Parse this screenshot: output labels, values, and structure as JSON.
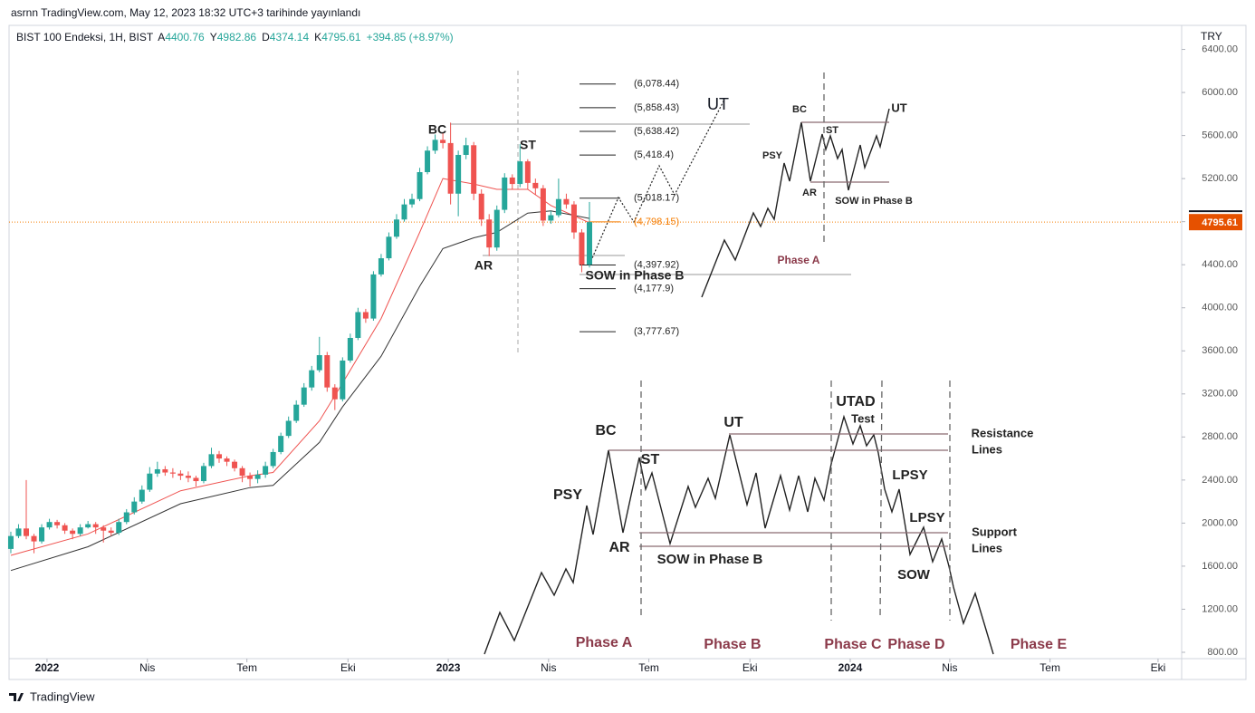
{
  "header": {
    "publisher": "asrnn TradingView.com, May 12, 2023 18:32 UTC+3 tarihinde yayınlandı"
  },
  "footer": {
    "brand": "TradingView"
  },
  "chart_data": {
    "type": "candlestick",
    "symbol": "BIST 100 Endeksi, 1H, BIST",
    "ohlc_letters": [
      "A",
      "Y",
      "D",
      "K"
    ],
    "change": "+394.85 (+8.97%)",
    "currency": "TRY",
    "up_color": "#26a69a",
    "down_color": "#ef5350",
    "x": [
      0,
      1,
      2,
      3,
      4,
      5,
      6,
      7,
      8,
      9,
      10,
      11,
      12,
      13,
      14,
      15,
      16,
      17,
      18,
      19,
      20,
      21,
      22,
      23,
      24,
      25,
      26,
      27,
      28,
      29,
      30,
      31,
      32,
      33,
      34,
      35,
      36,
      37,
      38,
      39,
      40,
      41,
      42,
      43,
      44,
      45,
      46,
      47,
      48,
      49,
      50,
      51,
      52,
      53,
      54,
      55,
      56,
      57,
      58,
      59,
      60,
      61,
      62,
      63,
      64,
      65,
      66,
      67,
      68,
      69,
      70,
      71,
      72,
      73,
      74,
      75
    ],
    "open": [
      1760,
      1880,
      1950,
      1880,
      1830,
      1960,
      2010,
      1980,
      1930,
      1900,
      1960,
      1990,
      1960,
      1930,
      1910,
      2010,
      2100,
      2200,
      2310,
      2460,
      2500,
      2470,
      2460,
      2440,
      2420,
      2390,
      2530,
      2640,
      2600,
      2570,
      2510,
      2440,
      2410,
      2450,
      2530,
      2660,
      2810,
      2950,
      3100,
      3260,
      3420,
      3560,
      3260,
      3150,
      3510,
      3720,
      3960,
      3900,
      4310,
      4460,
      4660,
      4820,
      4960,
      5010,
      5260,
      5460,
      5560,
      5530,
      5060,
      5420,
      5510,
      5060,
      4820,
      4560,
      4910,
      5210,
      5150,
      5360,
      5160,
      5110,
      4810,
      4860,
      5010,
      4960,
      4700,
      4400.76
    ],
    "high": [
      1920,
      1990,
      2400,
      1900,
      1990,
      2040,
      2030,
      2000,
      1950,
      1990,
      2020,
      2010,
      1980,
      1960,
      2040,
      2130,
      2240,
      2350,
      2520,
      2570,
      2530,
      2510,
      2490,
      2480,
      2440,
      2560,
      2700,
      2670,
      2620,
      2590,
      2530,
      2470,
      2490,
      2570,
      2690,
      2840,
      2990,
      3140,
      3300,
      3460,
      3730,
      3590,
      3290,
      3540,
      3760,
      4000,
      3990,
      4340,
      4500,
      4700,
      4870,
      5010,
      5060,
      5300,
      5500,
      5610,
      5620,
      5720,
      5460,
      5580,
      5540,
      5100,
      4870,
      4950,
      5250,
      5240,
      5520,
      5380,
      5200,
      5140,
      4900,
      5200,
      5060,
      4990,
      4730,
      4982.86
    ],
    "low": [
      1720,
      1860,
      1850,
      1720,
      1810,
      1940,
      1950,
      1900,
      1850,
      1880,
      1950,
      1900,
      1820,
      1880,
      1890,
      1990,
      2080,
      2180,
      2290,
      2430,
      2440,
      2420,
      2400,
      2380,
      2340,
      2370,
      2510,
      2560,
      2530,
      2480,
      2380,
      2340,
      2370,
      2420,
      2510,
      2640,
      2790,
      2930,
      3080,
      3230,
      3400,
      3220,
      3050,
      3130,
      3490,
      3700,
      3860,
      3880,
      4290,
      4440,
      4640,
      4800,
      4930,
      4990,
      5240,
      5430,
      5480,
      4960,
      4850,
      5380,
      5000,
      4760,
      4480,
      4530,
      4880,
      5100,
      5120,
      5100,
      5050,
      4760,
      4780,
      4840,
      4920,
      4640,
      4330,
      4374.14
    ],
    "close": [
      1880,
      1950,
      1880,
      1830,
      1960,
      2010,
      1980,
      1930,
      1900,
      1960,
      1990,
      1960,
      1930,
      1910,
      2010,
      2100,
      2200,
      2310,
      2460,
      2500,
      2470,
      2460,
      2440,
      2420,
      2390,
      2530,
      2640,
      2600,
      2570,
      2510,
      2440,
      2410,
      2450,
      2530,
      2660,
      2810,
      2950,
      3100,
      3260,
      3420,
      3560,
      3260,
      3150,
      3510,
      3720,
      3960,
      3900,
      4310,
      4460,
      4660,
      4820,
      4960,
      5010,
      5260,
      5460,
      5560,
      5530,
      5060,
      5420,
      5510,
      5060,
      4820,
      4560,
      4910,
      5210,
      5150,
      5360,
      5160,
      5110,
      4810,
      4860,
      5010,
      4960,
      4700,
      4400.76,
      4795.61
    ],
    "moving_averages": [
      {
        "color": "#ef5350",
        "x": [
          0,
          10,
          22,
          31,
          34,
          40,
          43,
          48,
          53,
          56,
          60,
          63,
          67,
          70,
          75
        ],
        "values": [
          1700,
          1900,
          2300,
          2440,
          2470,
          2950,
          3300,
          3900,
          4700,
          5200,
          5150,
          5100,
          5100,
          4950,
          4790
        ]
      },
      {
        "color": "#333333",
        "x": [
          0,
          10,
          22,
          31,
          34,
          40,
          43,
          48,
          53,
          56,
          60,
          63,
          67,
          70,
          75
        ],
        "values": [
          1560,
          1780,
          2180,
          2330,
          2350,
          2750,
          3080,
          3550,
          4200,
          4550,
          4650,
          4700,
          4880,
          4900,
          4830
        ]
      }
    ],
    "levels": [
      {
        "value": 6078.44,
        "label": "(6,078.44)"
      },
      {
        "value": 5858.43,
        "label": "(5,858.43)"
      },
      {
        "value": 5638.42,
        "label": "(5,638.42)"
      },
      {
        "value": 5418.4,
        "label": "(5,418.4)"
      },
      {
        "value": 5018.17,
        "label": "(5,018.17)"
      },
      {
        "value": 4798.15,
        "label": "(4,798.15)"
      },
      {
        "value": 4397.92,
        "label": "(4,397.92)"
      },
      {
        "value": 4177.9,
        "label": "(4,177.9)"
      },
      {
        "value": 3777.67,
        "label": "(3,777.67)"
      }
    ],
    "xlim": [
      -0.23,
      151.76
    ],
    "xticks": [
      {
        "value": 4.69,
        "label": "2022"
      },
      {
        "value": 17.7,
        "label": "Nis"
      },
      {
        "value": 30.6,
        "label": "Tem"
      },
      {
        "value": 43.7,
        "label": "Eki"
      },
      {
        "value": 56.7,
        "label": "2023"
      },
      {
        "value": 69.7,
        "label": "Nis"
      },
      {
        "value": 82.7,
        "label": "Tem"
      },
      {
        "value": 95.8,
        "label": "Eki"
      },
      {
        "value": 108.8,
        "label": "2024"
      },
      {
        "value": 121.7,
        "label": "Nis"
      },
      {
        "value": 134.7,
        "label": "Tem"
      },
      {
        "value": 148.7,
        "label": "Eki"
      }
    ],
    "ylim": [
      741,
      6455
    ],
    "yticks": [
      {
        "value": 800,
        "label": "800.00"
      },
      {
        "value": 1200,
        "label": "1200.00"
      },
      {
        "value": 1600,
        "label": "1600.00"
      },
      {
        "value": 2000,
        "label": "2000.00"
      },
      {
        "value": 2400,
        "label": "2400.00"
      },
      {
        "value": 2800,
        "label": "2800.00"
      },
      {
        "value": 3200,
        "label": "3200.00"
      },
      {
        "value": 3600,
        "label": "3600.00"
      },
      {
        "value": 4000,
        "label": "4000.00"
      },
      {
        "value": 4400,
        "label": "4400.00"
      },
      {
        "value": 4800,
        "label": "4800.00"
      },
      {
        "value": 5200,
        "label": "5200.00"
      },
      {
        "value": 5600,
        "label": "5600.00"
      },
      {
        "value": 6000,
        "label": "6000.00"
      },
      {
        "value": 6400,
        "label": "6400.00"
      }
    ],
    "annotations": {
      "chart": [
        "BC",
        "ST",
        "AR",
        "SOW in Phase B",
        "UT"
      ],
      "small": [
        "BC",
        "ST",
        "UT",
        "PSY",
        "AR",
        "SOW in Phase B",
        "Phase A"
      ],
      "large": [
        "BC",
        "PSY",
        "AR",
        "ST",
        "UT",
        "SOW in Phase B",
        "UTAD",
        "Test",
        "Resistance",
        "Lines",
        "LPSY",
        "LPSY",
        "Support",
        "Lines",
        "SOW",
        "Phase A",
        "Phase B",
        "Phase C",
        "Phase D",
        "Phase E"
      ]
    }
  }
}
